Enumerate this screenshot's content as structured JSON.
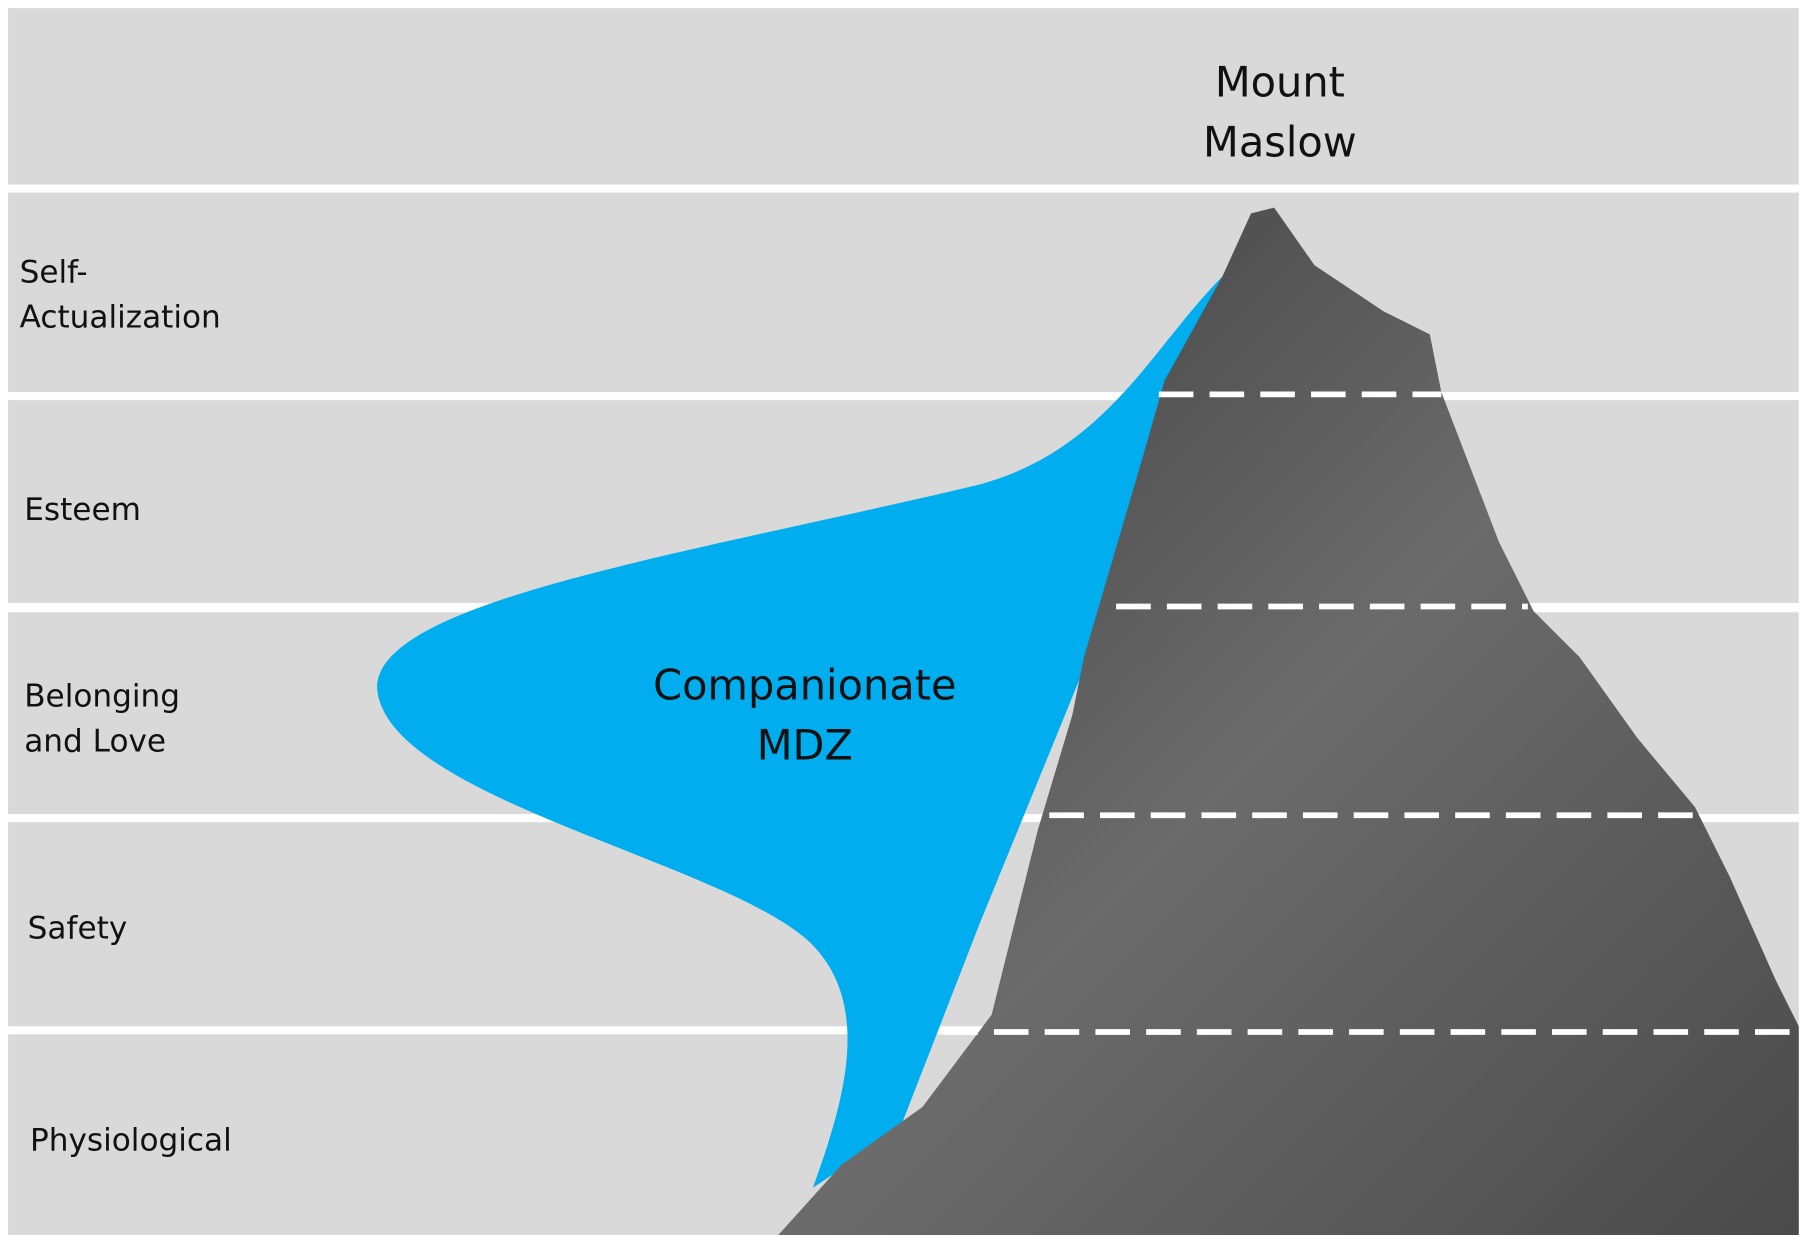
{
  "title": {
    "lines": [
      "Mount",
      "Maslow"
    ]
  },
  "levels": [
    {
      "lines": [
        "Self-",
        "Actualization"
      ]
    },
    {
      "lines": [
        "Esteem"
      ]
    },
    {
      "lines": [
        "Belonging",
        "and Love"
      ]
    },
    {
      "lines": [
        "Safety"
      ]
    },
    {
      "lines": [
        "Physiological"
      ]
    }
  ],
  "zone_label": {
    "lines": [
      "Companionate",
      "MDZ"
    ]
  }
}
